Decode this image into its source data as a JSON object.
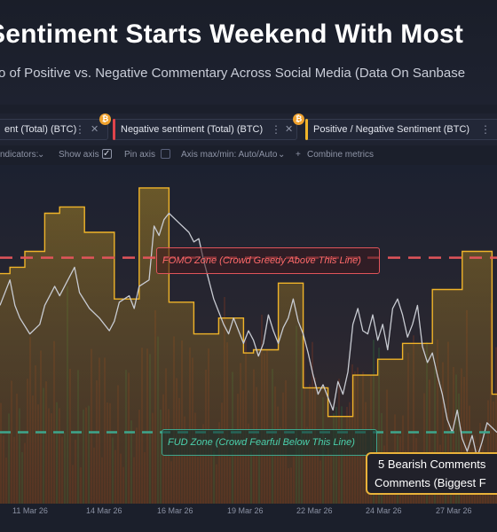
{
  "header": {
    "title": "Sentiment Starts Weekend With Most",
    "subtitle": "o of Positive vs. Negative Commentary Across Social Media (Data On Sanbase"
  },
  "tabs": [
    {
      "label": "ent (Total) (BTC)",
      "color": "#f0a22e"
    },
    {
      "label": "Negative sentiment (Total) (BTC)",
      "color": "#e0434b"
    },
    {
      "label": "Positive / Negative Sentiment (BTC)",
      "color": "#f0b429"
    }
  ],
  "toolbar": {
    "indicators": "ndicators:",
    "show_axis": "Show axis",
    "pin_axis": "Pin axis",
    "axis_maxmin": "Axis max/min: Auto/Auto",
    "combine": "Combine metrics"
  },
  "annotations": {
    "fomo": "FOMO Zone (Crowd Greedy Above This Line)",
    "fud": "FUD Zone (Crowd Fearful Below This Line)",
    "callout_line1": "5 Bearish Comments",
    "callout_line2": "Comments (Biggest F"
  },
  "chart_data": {
    "type": "line",
    "x_ticks": [
      "11 Mar 26",
      "14 Mar 26",
      "16 Mar 26",
      "19 Mar 26",
      "22 Mar 26",
      "24 Mar 26",
      "27 Mar 26"
    ],
    "xlim": [
      0,
      100
    ],
    "ylim": [
      0,
      100
    ],
    "grid": false,
    "reference_lines": {
      "fomo": 73,
      "fud": 18
    },
    "series": [
      {
        "kind": "step-area",
        "color": "#f0b429",
        "points": [
          [
            0,
            68
          ],
          [
            2,
            68
          ],
          [
            2,
            70
          ],
          [
            5,
            70
          ],
          [
            5,
            75
          ],
          [
            9,
            75
          ],
          [
            9,
            87
          ],
          [
            12,
            87
          ],
          [
            12,
            89
          ],
          [
            17,
            89
          ],
          [
            17,
            81
          ],
          [
            23,
            81
          ],
          [
            23,
            60
          ],
          [
            28,
            60
          ],
          [
            28,
            95
          ],
          [
            34,
            95
          ],
          [
            34,
            59
          ],
          [
            39,
            59
          ],
          [
            39,
            49
          ],
          [
            44,
            49
          ],
          [
            44,
            54
          ],
          [
            49,
            54
          ],
          [
            49,
            43
          ],
          [
            51,
            43
          ],
          [
            51,
            44
          ],
          [
            56,
            44
          ],
          [
            56,
            65
          ],
          [
            61,
            65
          ],
          [
            61,
            32
          ],
          [
            66,
            32
          ],
          [
            66,
            23
          ],
          [
            71,
            23
          ],
          [
            71,
            36
          ],
          [
            76,
            36
          ],
          [
            76,
            41
          ],
          [
            81,
            41
          ],
          [
            81,
            46
          ],
          [
            87,
            46
          ],
          [
            87,
            63
          ],
          [
            93,
            63
          ],
          [
            93,
            75
          ],
          [
            99,
            75
          ],
          [
            99,
            30
          ],
          [
            100,
            30
          ]
        ]
      },
      {
        "kind": "line",
        "color": "#c8cbd2",
        "points": [
          [
            0,
            58
          ],
          [
            2,
            66
          ],
          [
            3,
            58
          ],
          [
            4,
            54
          ],
          [
            6,
            49
          ],
          [
            8,
            52
          ],
          [
            9,
            58
          ],
          [
            11,
            64
          ],
          [
            12,
            61
          ],
          [
            14,
            67
          ],
          [
            15,
            70
          ],
          [
            16,
            62
          ],
          [
            18,
            57
          ],
          [
            20,
            54
          ],
          [
            22,
            50
          ],
          [
            23,
            53
          ],
          [
            24,
            59
          ],
          [
            26,
            61
          ],
          [
            27,
            57
          ],
          [
            28,
            64
          ],
          [
            30,
            66
          ],
          [
            31,
            83
          ],
          [
            32,
            80
          ],
          [
            33,
            85
          ],
          [
            34,
            87
          ],
          [
            36,
            84
          ],
          [
            38,
            81
          ],
          [
            39,
            78
          ],
          [
            40,
            79
          ],
          [
            41,
            72
          ],
          [
            42,
            66
          ],
          [
            43,
            60
          ],
          [
            44,
            56
          ],
          [
            45,
            52
          ],
          [
            46,
            49
          ],
          [
            47,
            54
          ],
          [
            48,
            50
          ],
          [
            49,
            46
          ],
          [
            50,
            50
          ],
          [
            51,
            47
          ],
          [
            52,
            42
          ],
          [
            53,
            46
          ],
          [
            54,
            55
          ],
          [
            55,
            50
          ],
          [
            56,
            46
          ],
          [
            57,
            51
          ],
          [
            58,
            54
          ],
          [
            59,
            60
          ],
          [
            60,
            53
          ],
          [
            61,
            49
          ],
          [
            62,
            43
          ],
          [
            63,
            36
          ],
          [
            64,
            30
          ],
          [
            65,
            33
          ],
          [
            66,
            29
          ],
          [
            67,
            25
          ],
          [
            68,
            34
          ],
          [
            69,
            30
          ],
          [
            70,
            37
          ],
          [
            71,
            52
          ],
          [
            72,
            57
          ],
          [
            73,
            50
          ],
          [
            74,
            49
          ],
          [
            75,
            55
          ],
          [
            76,
            47
          ],
          [
            77,
            52
          ],
          [
            78,
            44
          ],
          [
            79,
            57
          ],
          [
            80,
            60
          ],
          [
            81,
            55
          ],
          [
            82,
            48
          ],
          [
            83,
            52
          ],
          [
            84,
            58
          ],
          [
            85,
            45
          ],
          [
            86,
            40
          ],
          [
            87,
            43
          ],
          [
            88,
            36
          ],
          [
            89,
            30
          ],
          [
            90,
            22
          ],
          [
            91,
            18
          ],
          [
            92,
            25
          ],
          [
            93,
            16
          ],
          [
            94,
            12
          ],
          [
            95,
            17
          ],
          [
            96,
            10
          ],
          [
            97,
            15
          ],
          [
            98,
            21
          ],
          [
            100,
            18
          ]
        ]
      }
    ]
  }
}
